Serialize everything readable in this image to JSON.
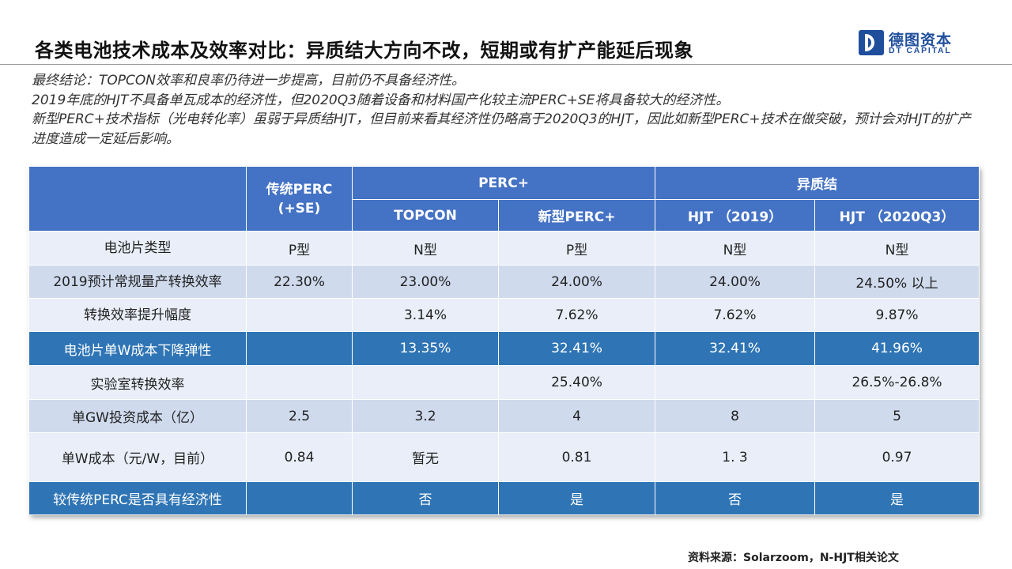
{
  "header": {
    "title": "各类电池技术成本及效率对比：异质结大方向不改，短期或有扩产能延后现象",
    "logo_cn": "德图资本",
    "logo_en": "DT CAPITAL"
  },
  "conclusion": [
    "最终结论：TOPCON效率和良率仍待进一步提高，目前仍不具备经济性。",
    "2019年底的HJT不具备单瓦成本的经济性，但2020Q3随着设备和材料国产化较主流PERC+SE将具备较大的经济性。",
    "新型PERC+技术指标（光电转化率）虽弱于异质结HJT，但目前来看其经济性仍略高于2020Q3的HJT，因此如新型PERC+技术在做突破，预计会对HJT的扩产进度造成一定延后影响。"
  ],
  "table": {
    "groups": {
      "perc_se": "传统PERC\n(+SE)",
      "perc_plus": "PERC+",
      "hetero": "异质结"
    },
    "subheaders": [
      "TOPCON",
      "新型PERC+",
      "HJT （2019）",
      "HJT （2020Q3）"
    ],
    "rows": [
      {
        "label": "电池片类型",
        "values": [
          "P型",
          "N型",
          "P型",
          "N型",
          "N型"
        ]
      },
      {
        "label": "2019预计常规量产转换效率",
        "values": [
          "22.30%",
          "23.00%",
          "24.00%",
          "24.00%",
          "24.50% 以上"
        ]
      },
      {
        "label": "转换效率提升幅度",
        "values": [
          "",
          "3.14%",
          "7.62%",
          "7.62%",
          "9.87%"
        ]
      },
      {
        "label": "电池片单W成本下降弹性",
        "values": [
          "",
          "13.35%",
          "32.41%",
          "32.41%",
          "41.96%"
        ]
      },
      {
        "label": "实验室转换效率",
        "values": [
          "",
          "",
          "25.40%",
          "",
          "26.5%-26.8%"
        ]
      },
      {
        "label": "单GW投资成本（亿）",
        "values": [
          "2.5",
          "3.2",
          "4",
          "8",
          "5"
        ]
      },
      {
        "label": "单W成本（元/W，目前）",
        "values": [
          "0.84",
          "暂无",
          "0.81",
          "1. 3",
          "0.97"
        ]
      },
      {
        "label": "较传统PERC是否具有经济性",
        "values": [
          "",
          "否",
          "是",
          "否",
          "是"
        ]
      }
    ]
  },
  "footer": {
    "source": "资料来源：Solarzoom，N-HJT相关论文"
  },
  "colors": {
    "header_blue": "#4472c4",
    "highlight_blue": "#2f75b5",
    "row_light": "#e9eef8",
    "row_mid": "#cfdaed",
    "brand": "#1f4e9c"
  }
}
